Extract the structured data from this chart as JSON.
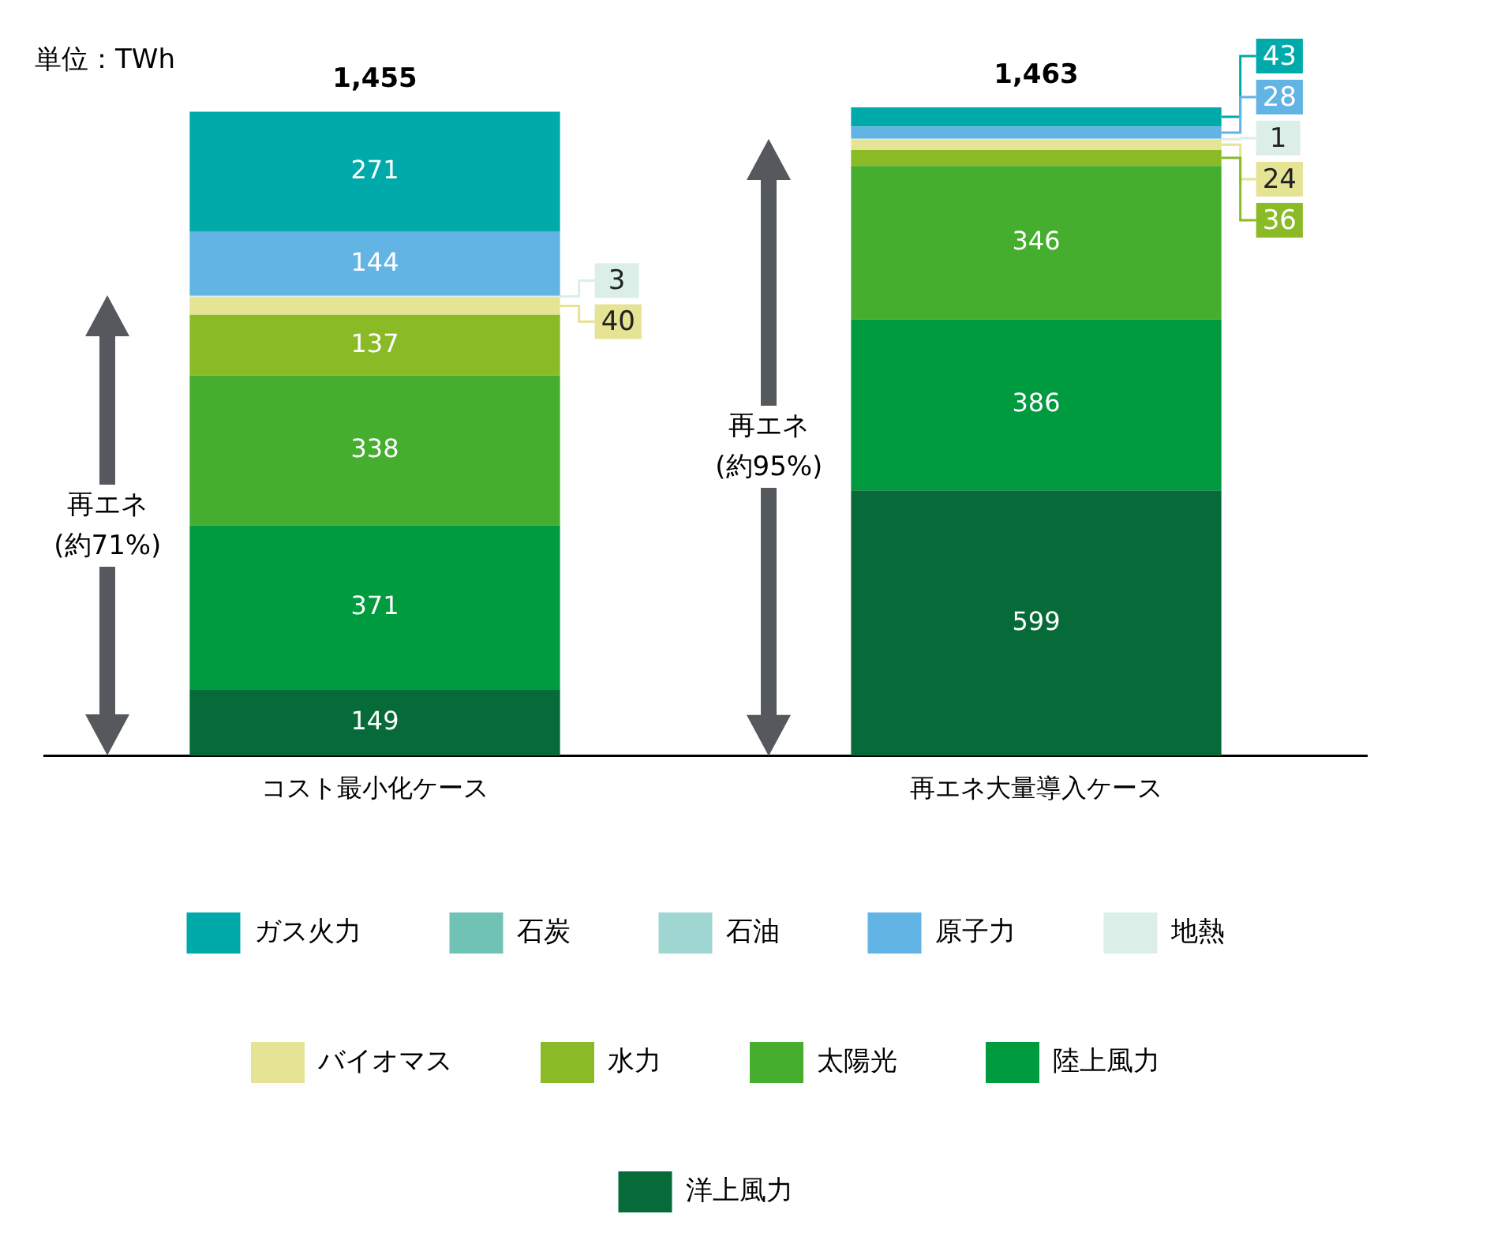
{
  "chart_data": {
    "type": "bar",
    "stacked": true,
    "categories": [
      "コスト最小化ケース",
      "再エネ大量導入ケース"
    ],
    "series": [
      {
        "name": "洋上風力",
        "color": "#066b38",
        "values": [
          149,
          599
        ]
      },
      {
        "name": "陸上風力",
        "color": "#009a3f",
        "values": [
          371,
          386
        ]
      },
      {
        "name": "太陽光",
        "color": "#45ae2f",
        "values": [
          338,
          346
        ]
      },
      {
        "name": "水力",
        "color": "#8abb27",
        "values": [
          137,
          36
        ]
      },
      {
        "name": "バイオマス",
        "color": "#e5e394",
        "values": [
          40,
          24
        ]
      },
      {
        "name": "地熱",
        "color": "#dceee8",
        "values": [
          3,
          1
        ]
      },
      {
        "name": "原子力",
        "color": "#62b4e4",
        "values": [
          144,
          28
        ]
      },
      {
        "name": "石油",
        "color": "#9fd6d2",
        "values": [
          null,
          null
        ]
      },
      {
        "name": "石炭",
        "color": "#70c2b4",
        "values": [
          null,
          null
        ]
      },
      {
        "name": "ガス火力",
        "color": "#00aaaa",
        "values": [
          271,
          43
        ]
      }
    ],
    "data_labels": true,
    "totals": [
      "1,455",
      "1,463"
    ],
    "annotations": [
      "単位：TWh",
      "再エネ\n(約71%)",
      "再エネ\n(約95%)"
    ],
    "legend": "bottom",
    "tick_labels": "x"
  }
}
